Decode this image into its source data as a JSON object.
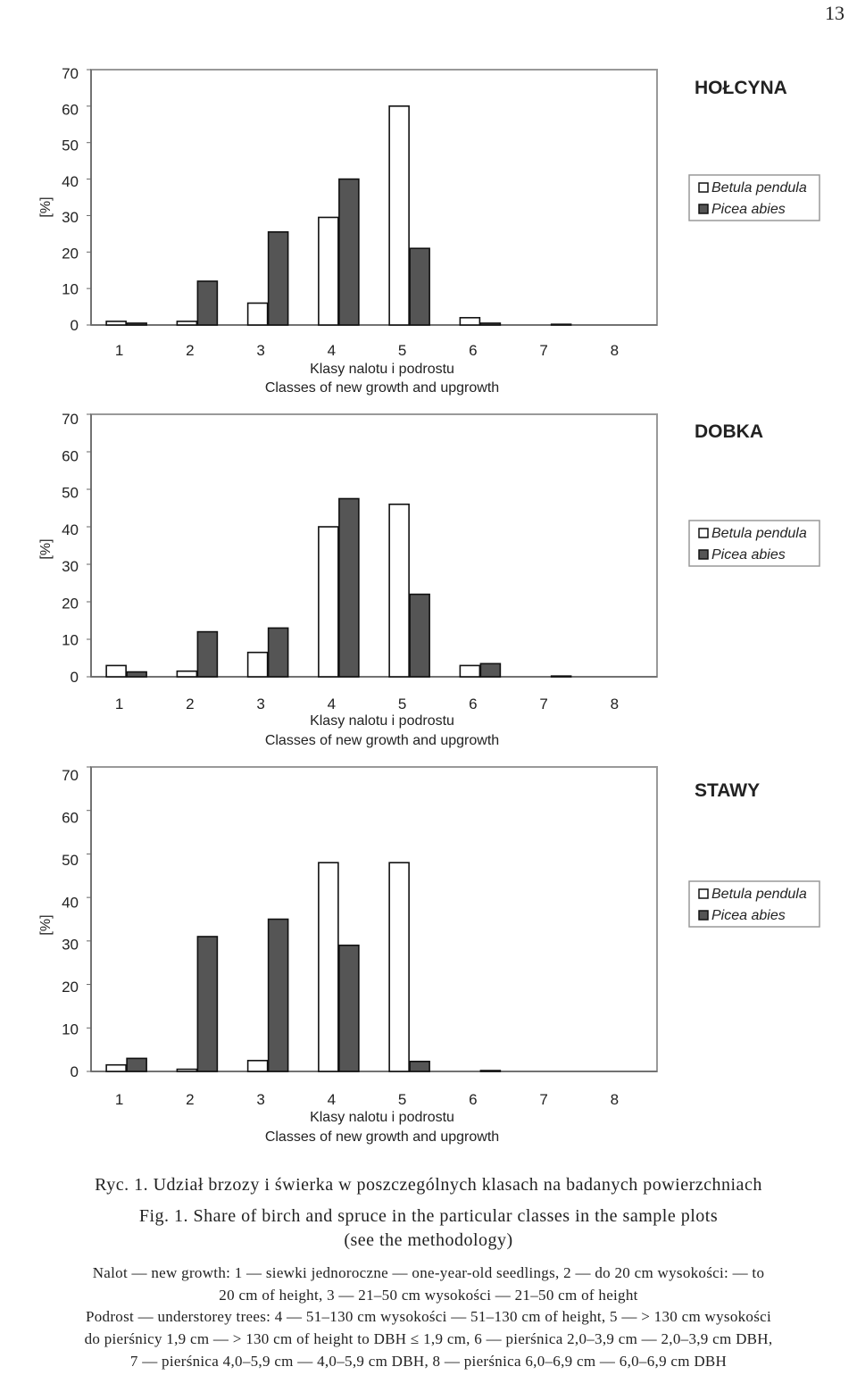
{
  "page_number": "13",
  "chart_data": [
    {
      "type": "bar",
      "title": "HOŁCYNA",
      "categories": [
        "1",
        "2",
        "3",
        "4",
        "5",
        "6",
        "7",
        "8"
      ],
      "series": [
        {
          "name": "Betula pendula",
          "color": "#ffffff",
          "values": [
            1,
            1,
            6,
            29.5,
            60,
            2,
            0,
            0
          ]
        },
        {
          "name": "Picea abies",
          "color": "#555555",
          "values": [
            0.5,
            12,
            25.5,
            40,
            21,
            0.5,
            0.2,
            0
          ]
        }
      ],
      "ylabel": "[%]",
      "xlabel": [
        "Klasy nalotu i podrostu",
        "Classes of new growth and upgrowth"
      ],
      "yticks": [
        0,
        10,
        20,
        30,
        40,
        50,
        60,
        70
      ],
      "ylim": [
        0,
        70
      ],
      "grid": false,
      "legend": "right"
    },
    {
      "type": "bar",
      "title": "DOBKA",
      "categories": [
        "1",
        "2",
        "3",
        "4",
        "5",
        "6",
        "7",
        "8"
      ],
      "series": [
        {
          "name": "Betula pendula",
          "color": "#ffffff",
          "values": [
            3,
            1.5,
            6.5,
            40,
            46,
            3,
            0,
            0
          ]
        },
        {
          "name": "Picea abies",
          "color": "#555555",
          "values": [
            1.3,
            12,
            13,
            47.5,
            22,
            3.5,
            0.2,
            0
          ]
        }
      ],
      "ylabel": "[%]",
      "xlabel": [
        "Klasy nalotu i podrostu",
        "Classes of new growth and upgrowth"
      ],
      "yticks": [
        0,
        10,
        20,
        30,
        40,
        50,
        60,
        70
      ],
      "ylim": [
        0,
        70
      ],
      "grid": false,
      "legend": "right"
    },
    {
      "type": "bar",
      "title": "STAWY",
      "categories": [
        "1",
        "2",
        "3",
        "4",
        "5",
        "6",
        "7",
        "8"
      ],
      "series": [
        {
          "name": "Betula pendula",
          "color": "#ffffff",
          "values": [
            1.5,
            0.5,
            2.5,
            48,
            48,
            0,
            0,
            0
          ]
        },
        {
          "name": "Picea abies",
          "color": "#555555",
          "values": [
            3,
            31,
            35,
            29,
            2.3,
            0.2,
            0,
            0
          ]
        }
      ],
      "ylabel": "[%]",
      "xlabel": [
        "Klasy nalotu i podrostu",
        "Classes of new growth and upgrowth"
      ],
      "yticks": [
        0,
        10,
        20,
        30,
        40,
        50,
        60,
        70
      ],
      "ylim": [
        0,
        70
      ],
      "grid": false,
      "legend": "right"
    }
  ],
  "caption": {
    "pl": "Ryc. 1. Udział brzozy i świerka w poszczególnych klasach na badanych powierzchniach",
    "en_1": "Fig. 1. Share of birch and spruce in the particular classes in the sample plots",
    "en_2": "(see the methodology)",
    "note_1": "Nalot — new growth: 1 — siewki jednoroczne — one-year-old seedlings, 2 — do 20 cm wysokości: — to",
    "note_2": "20 cm of height, 3 — 21–50 cm wysokości — 21–50 cm of height",
    "note_3": "Podrost — understorey trees: 4 — 51–130 cm wysokości — 51–130 cm of height, 5 — > 130 cm wysokości",
    "note_4": "do pierśnicy 1,9 cm — > 130 cm of height to DBH ≤ 1,9 cm, 6 — pierśnica 2,0–3,9 cm — 2,0–3,9 cm DBH,",
    "note_5": "7 — pierśnica 4,0–5,9 cm — 4,0–5,9 cm DBH, 8 — pierśnica 6,0–6,9 cm — 6,0–6,9 cm DBH"
  }
}
